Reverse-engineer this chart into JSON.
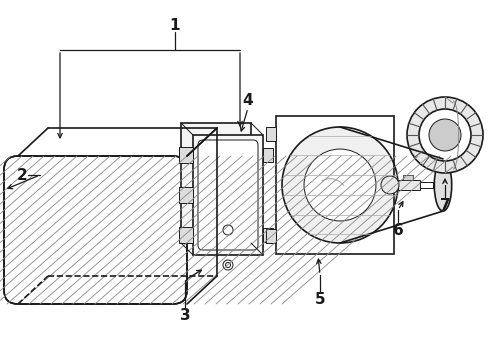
{
  "bg_color": "#ffffff",
  "line_color": "#1a1a1a",
  "label_color": "#1a1a1a",
  "figsize": [
    4.9,
    3.6
  ],
  "dpi": 100
}
